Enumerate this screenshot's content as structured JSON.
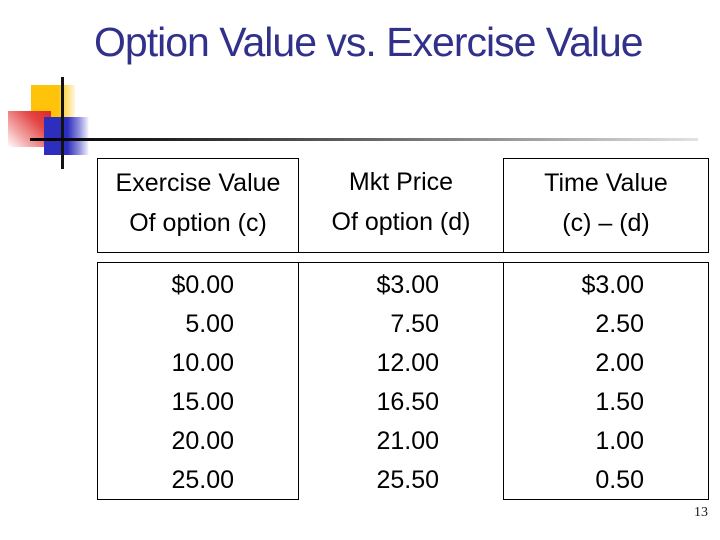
{
  "title": {
    "text": "Option Value vs. Exercise Value"
  },
  "table": {
    "columns": [
      {
        "header_line1": "Exercise Value",
        "header_line2": "Of option (c)",
        "values": [
          "$0.00",
          "5.00",
          "10.00",
          "15.00",
          "20.00",
          "25.00"
        ]
      },
      {
        "header_line1": "Mkt Price",
        "header_line2": "Of option (d)",
        "values": [
          "$3.00",
          "7.50",
          "12.00",
          "16.50",
          "21.00",
          "25.50"
        ]
      },
      {
        "header_line1": "Time Value",
        "header_line2": "(c) – (d)",
        "values": [
          "$3.00",
          "2.50",
          "2.00",
          "1.50",
          "1.00",
          "0.50"
        ]
      }
    ]
  },
  "slide_number": "13",
  "colors": {
    "title_text": "#31318c",
    "table_border": "#000000",
    "ornament_yellow": "#ffc40a",
    "ornament_red": "#df2727",
    "ornament_blue": "#2d2dbe",
    "rule_dark": "#000000",
    "rule_light": "#e2e2e2",
    "background": "#ffffff"
  }
}
